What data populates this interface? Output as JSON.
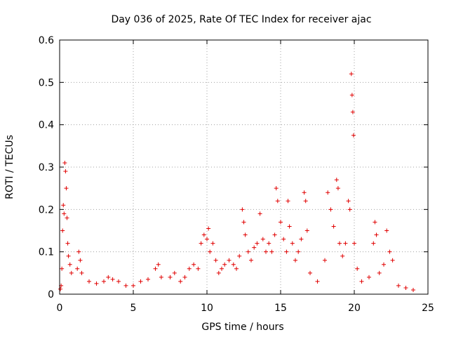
{
  "chart_data": {
    "type": "scatter",
    "title": "Day 036 of 2025, Rate Of TEC Index for receiver ajac",
    "xlabel": "GPS time / hours",
    "ylabel": "ROTI / TECUs",
    "xlim": [
      0,
      25
    ],
    "ylim": [
      0,
      0.6
    ],
    "xticks": [
      "0",
      "5",
      "10",
      "15",
      "20",
      "25"
    ],
    "yticks": [
      "0",
      "0.1",
      "0.2",
      "0.3",
      "0.4",
      "0.5",
      "0.6"
    ],
    "grid": true,
    "marker": "+",
    "color": "#e00000",
    "series": [
      {
        "values": [
          [
            0.05,
            0.012
          ],
          [
            0.1,
            0.02
          ],
          [
            0.15,
            0.06
          ],
          [
            0.2,
            0.15
          ],
          [
            0.25,
            0.21
          ],
          [
            0.3,
            0.19
          ],
          [
            0.35,
            0.31
          ],
          [
            0.4,
            0.29
          ],
          [
            0.45,
            0.25
          ],
          [
            0.5,
            0.18
          ],
          [
            0.55,
            0.12
          ],
          [
            0.6,
            0.09
          ],
          [
            0.7,
            0.07
          ],
          [
            0.8,
            0.05
          ],
          [
            1.2,
            0.06
          ],
          [
            1.3,
            0.1
          ],
          [
            1.4,
            0.08
          ],
          [
            1.5,
            0.05
          ],
          [
            2.0,
            0.03
          ],
          [
            2.5,
            0.025
          ],
          [
            3.0,
            0.03
          ],
          [
            3.3,
            0.04
          ],
          [
            3.6,
            0.035
          ],
          [
            4.0,
            0.03
          ],
          [
            4.5,
            0.02
          ],
          [
            5.0,
            0.02
          ],
          [
            5.5,
            0.03
          ],
          [
            6.0,
            0.035
          ],
          [
            6.5,
            0.06
          ],
          [
            6.7,
            0.07
          ],
          [
            6.9,
            0.04
          ],
          [
            7.5,
            0.04
          ],
          [
            7.8,
            0.05
          ],
          [
            8.2,
            0.03
          ],
          [
            8.5,
            0.04
          ],
          [
            8.8,
            0.06
          ],
          [
            9.1,
            0.07
          ],
          [
            9.4,
            0.06
          ],
          [
            9.6,
            0.12
          ],
          [
            9.8,
            0.14
          ],
          [
            10.0,
            0.13
          ],
          [
            10.1,
            0.155
          ],
          [
            10.2,
            0.1
          ],
          [
            10.4,
            0.12
          ],
          [
            10.6,
            0.08
          ],
          [
            10.8,
            0.05
          ],
          [
            11.0,
            0.06
          ],
          [
            11.2,
            0.07
          ],
          [
            11.5,
            0.08
          ],
          [
            11.8,
            0.07
          ],
          [
            12.0,
            0.06
          ],
          [
            12.2,
            0.09
          ],
          [
            12.4,
            0.2
          ],
          [
            12.5,
            0.17
          ],
          [
            12.6,
            0.14
          ],
          [
            12.8,
            0.1
          ],
          [
            13.0,
            0.08
          ],
          [
            13.2,
            0.11
          ],
          [
            13.4,
            0.12
          ],
          [
            13.6,
            0.19
          ],
          [
            13.8,
            0.13
          ],
          [
            14.0,
            0.1
          ],
          [
            14.2,
            0.12
          ],
          [
            14.4,
            0.1
          ],
          [
            14.6,
            0.14
          ],
          [
            14.7,
            0.25
          ],
          [
            14.8,
            0.22
          ],
          [
            15.0,
            0.17
          ],
          [
            15.2,
            0.13
          ],
          [
            15.4,
            0.1
          ],
          [
            15.5,
            0.22
          ],
          [
            15.6,
            0.16
          ],
          [
            15.8,
            0.12
          ],
          [
            16.0,
            0.08
          ],
          [
            16.2,
            0.1
          ],
          [
            16.4,
            0.13
          ],
          [
            16.6,
            0.24
          ],
          [
            16.7,
            0.22
          ],
          [
            16.8,
            0.15
          ],
          [
            17.0,
            0.05
          ],
          [
            17.5,
            0.03
          ],
          [
            18.0,
            0.08
          ],
          [
            18.2,
            0.24
          ],
          [
            18.4,
            0.2
          ],
          [
            18.6,
            0.16
          ],
          [
            18.8,
            0.27
          ],
          [
            18.9,
            0.25
          ],
          [
            19.0,
            0.12
          ],
          [
            19.2,
            0.09
          ],
          [
            19.4,
            0.12
          ],
          [
            19.6,
            0.22
          ],
          [
            19.7,
            0.2
          ],
          [
            19.8,
            0.52
          ],
          [
            19.85,
            0.47
          ],
          [
            19.9,
            0.43
          ],
          [
            19.95,
            0.375
          ],
          [
            20.0,
            0.12
          ],
          [
            20.2,
            0.06
          ],
          [
            20.5,
            0.03
          ],
          [
            21.0,
            0.04
          ],
          [
            21.3,
            0.12
          ],
          [
            21.4,
            0.17
          ],
          [
            21.5,
            0.14
          ],
          [
            21.7,
            0.05
          ],
          [
            22.0,
            0.07
          ],
          [
            22.2,
            0.15
          ],
          [
            22.4,
            0.1
          ],
          [
            22.6,
            0.08
          ],
          [
            23.0,
            0.02
          ],
          [
            23.5,
            0.015
          ],
          [
            24.0,
            0.01
          ]
        ]
      }
    ]
  }
}
